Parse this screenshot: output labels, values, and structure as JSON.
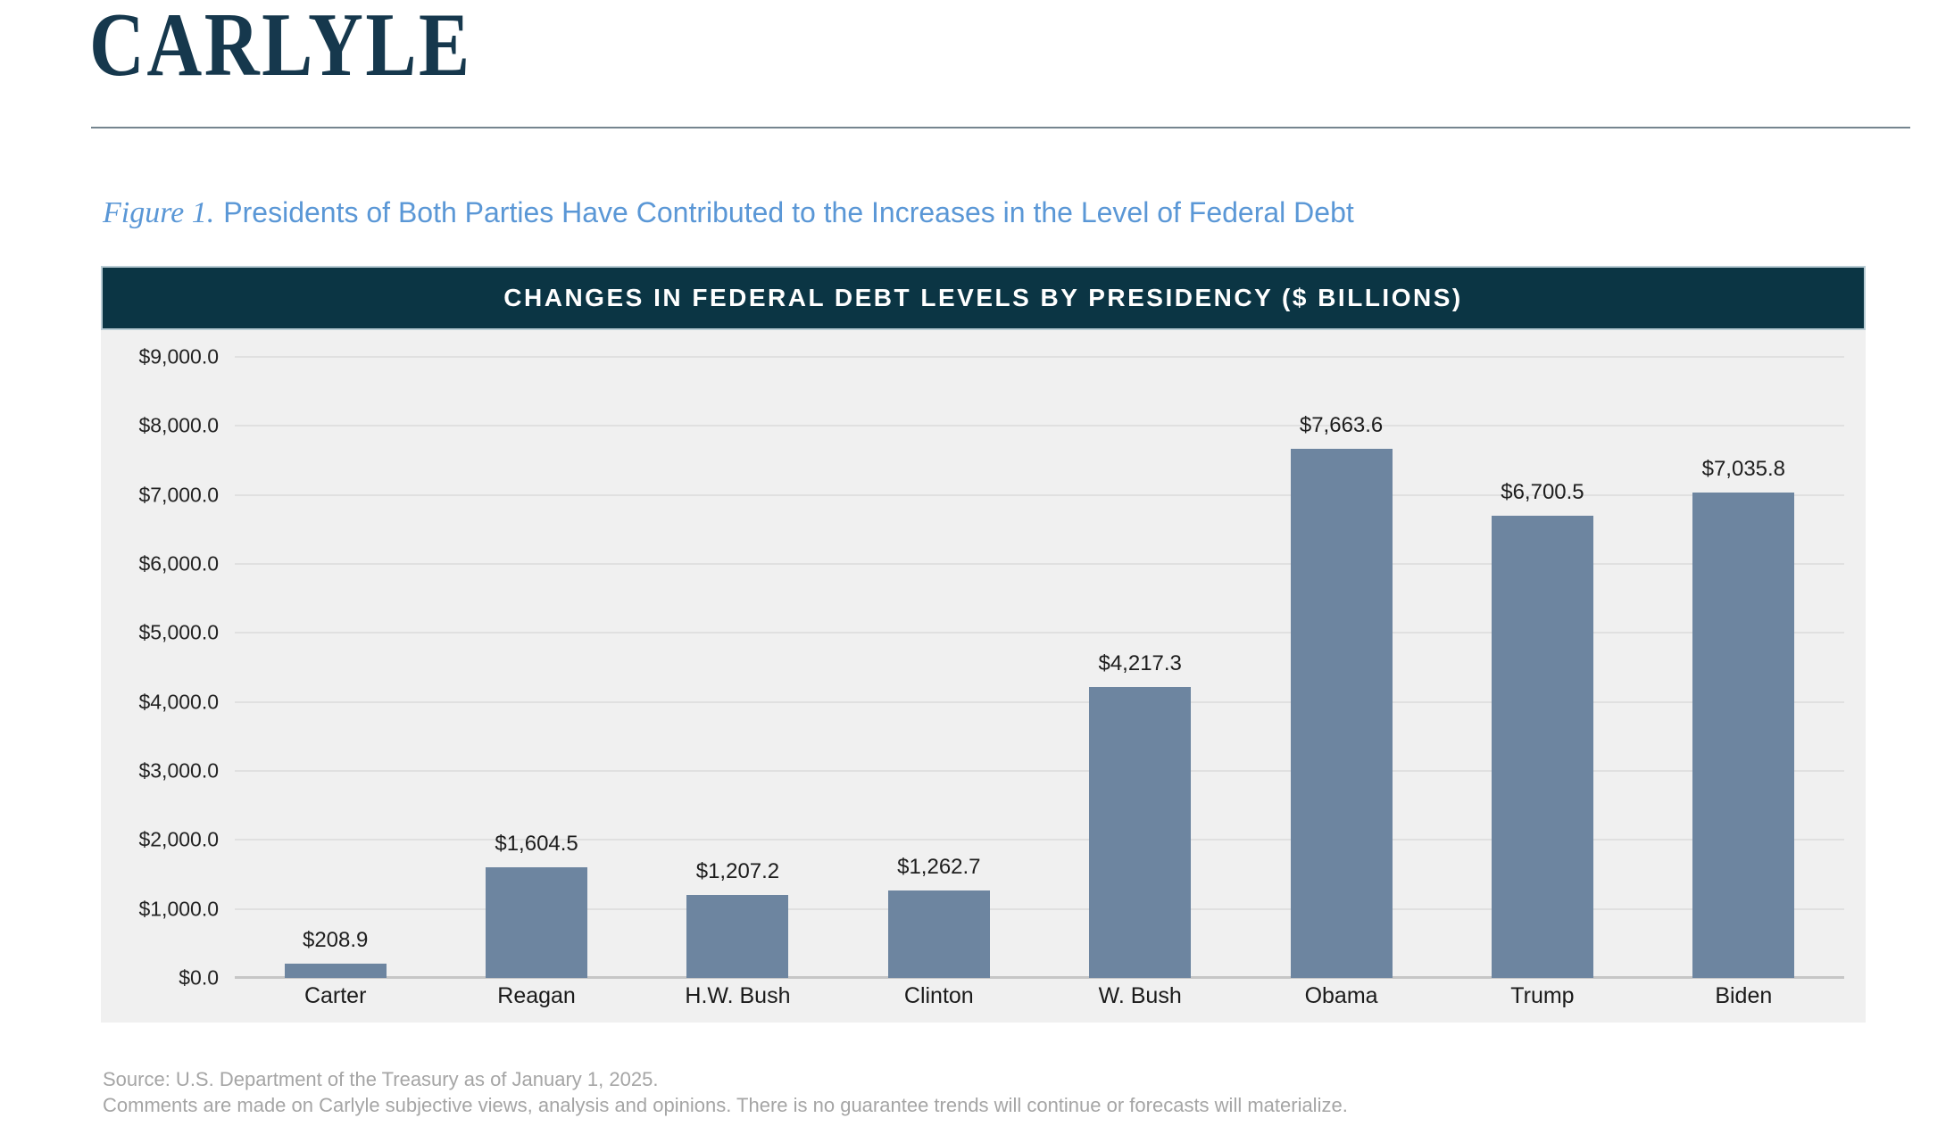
{
  "logo": "CARLYLE",
  "figure": {
    "label": "Figure 1.",
    "title": "Presidents of Both Parties Have Contributed to the Increases in the Level of Federal Debt"
  },
  "chart_data": {
    "type": "bar",
    "title": "CHANGES IN FEDERAL DEBT LEVELS BY PRESIDENCY ($ BILLIONS)",
    "categories": [
      "Carter",
      "Reagan",
      "H.W. Bush",
      "Clinton",
      "W. Bush",
      "Obama",
      "Trump",
      "Biden"
    ],
    "values": [
      208.9,
      1604.5,
      1207.2,
      1262.7,
      4217.3,
      7663.6,
      6700.5,
      7035.8
    ],
    "value_labels": [
      "$208.9",
      "$1,604.5",
      "$1,207.2",
      "$1,262.7",
      "$4,217.3",
      "$7,663.6",
      "$6,700.5",
      "$7,035.8"
    ],
    "xlabel": "",
    "ylabel": "",
    "ylim": [
      0,
      9000
    ],
    "ytick_step": 1000,
    "ytick_labels": [
      "$0.0",
      "$1,000.0",
      "$2,000.0",
      "$3,000.0",
      "$4,000.0",
      "$5,000.0",
      "$6,000.0",
      "$7,000.0",
      "$8,000.0",
      "$9,000.0"
    ],
    "grid": true,
    "legend_position": "none",
    "colors": {
      "bar": "#6d85a0",
      "header_bg": "#0b3544",
      "panel_bg": "#f0f0f0",
      "gridline": "#e0e0e0",
      "baseline": "#c6c6c6",
      "accent_blue": "#5a97d6",
      "logo_navy": "#16384d"
    }
  },
  "footer": {
    "line1": "Source: U.S. Department of the Treasury as of January 1, 2025.",
    "line2": "Comments are made on Carlyle subjective views, analysis and opinions. There is no guarantee trends will continue or forecasts will materialize."
  }
}
